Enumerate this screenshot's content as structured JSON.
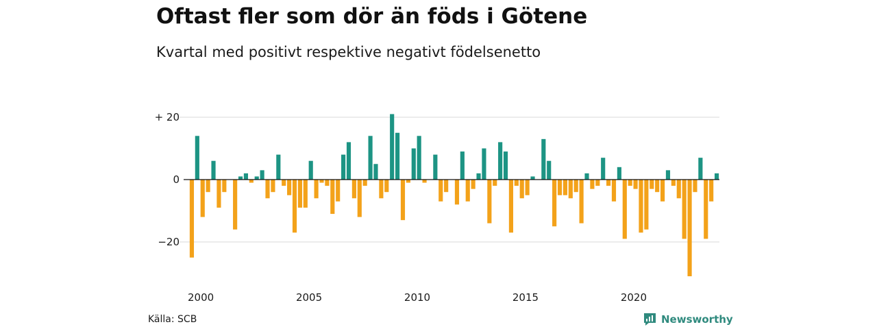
{
  "header": {
    "title": "Oftast fler som dör än föds i Götene",
    "subtitle": "Kvartal med positivt respektive negativt födelsenetto"
  },
  "footer": {
    "source": "Källa: SCB",
    "brand": "Newsworthy",
    "brand_icon": "newsworthy-logo-icon"
  },
  "colors": {
    "positive": "#1d9484",
    "negative": "#f3a21a",
    "grid": "#d9d9d9",
    "brand": "#2f8a7e"
  },
  "chart_data": {
    "type": "bar",
    "title": "Oftast fler som dör än föds i Götene",
    "subtitle": "Kvartal med positivt respektive negativt födelsenetto",
    "xlabel": "",
    "ylabel": "",
    "ylim": [
      -31,
      21
    ],
    "grid": true,
    "y_ticks": [
      {
        "value": 20,
        "label": "+ 20"
      },
      {
        "value": 0,
        "label": "0"
      },
      {
        "value": -20,
        "label": "−20"
      }
    ],
    "x_ticks": [
      {
        "index": 0,
        "label": "2000"
      },
      {
        "index": 20,
        "label": "2005"
      },
      {
        "index": 40,
        "label": "2010"
      },
      {
        "index": 60,
        "label": "2015"
      },
      {
        "index": 80,
        "label": "2020"
      }
    ],
    "period_start": "2000 Q1",
    "period_frequency": "quarterly",
    "values": [
      -25,
      14,
      -12,
      -4,
      6,
      -9,
      -4,
      0,
      -16,
      1,
      2,
      -1,
      1,
      3,
      -6,
      -4,
      8,
      -2,
      -5,
      -17,
      -9,
      -9,
      6,
      -6,
      -1,
      -2,
      -11,
      -7,
      8,
      12,
      -6,
      -12,
      -2,
      14,
      5,
      -6,
      -4,
      21,
      15,
      -13,
      -1,
      10,
      14,
      -1,
      0,
      8,
      -7,
      -4,
      0,
      -8,
      9,
      -7,
      -3,
      2,
      10,
      -14,
      -2,
      12,
      9,
      -17,
      -2,
      -6,
      -5,
      1,
      0,
      13,
      6,
      -15,
      -5,
      -5,
      -6,
      -4,
      -14,
      2,
      -3,
      -2,
      7,
      -2,
      -7,
      4,
      -19,
      -2,
      -3,
      -17,
      -16,
      -3,
      -4,
      -7,
      3,
      -2,
      -6,
      -19,
      -31,
      -4,
      7,
      -19,
      -7,
      2
    ]
  }
}
